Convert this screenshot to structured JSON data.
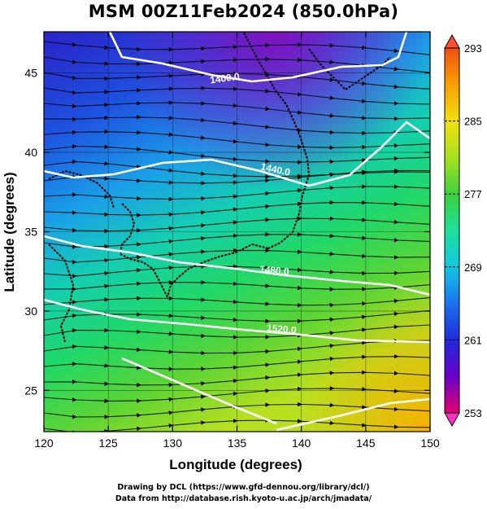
{
  "title": "MSM 00Z11Feb2024 (850.0hPa)",
  "map": {
    "x_axis": {
      "label": "Longitude (degrees)",
      "ticks": [
        "120",
        "125",
        "130",
        "135",
        "140",
        "145",
        "150"
      ],
      "range": [
        120,
        150
      ]
    },
    "y_axis": {
      "label": "Latitude  (degrees)",
      "ticks": [
        "25",
        "30",
        "35",
        "40",
        "45"
      ],
      "range": [
        22.4,
        47.6
      ]
    },
    "contour_labels": [
      "1400.0",
      "1440.0",
      "1480.0",
      "1520.0"
    ],
    "colorbar": {
      "ticks": [
        "293",
        "285",
        "277",
        "269",
        "261",
        "253"
      ],
      "range": [
        253,
        293
      ],
      "colors": [
        "#e00070",
        "#6a00c8",
        "#1e2ad8",
        "#1c72f0",
        "#12c8e0",
        "#1ee09a",
        "#3cd23c",
        "#a8e01e",
        "#f0e012",
        "#f8a000",
        "#f05010"
      ]
    }
  },
  "credits": {
    "line1": "Drawing by DCL (https://www.gfd-dennou.org/library/dcl/)",
    "line2": "Data from http://database.rish.kyoto-u.ac.jp/arch/jmadata/"
  }
}
